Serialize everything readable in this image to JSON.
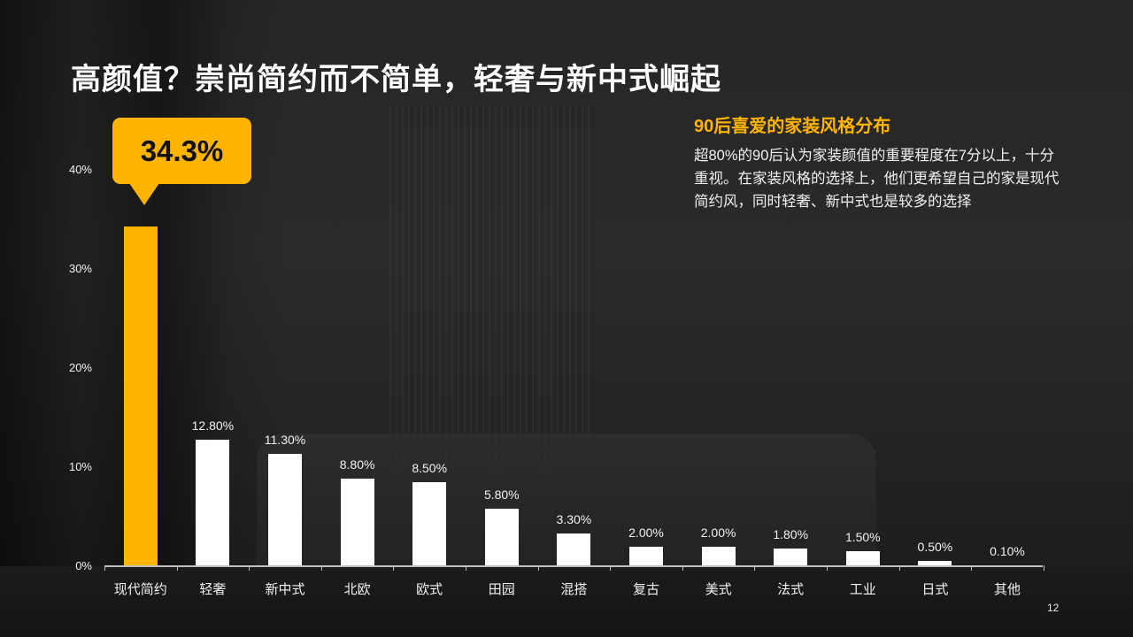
{
  "slide": {
    "title": "高颜值？崇尚简约而不简单，轻奢与新中式崛起",
    "subtitle": "90后喜爱的家装风格分布",
    "description": "超80%的90后认为家装颜值的重要程度在7分以上，十分重视。在家装风格的选择上，他们更希望自己的家是现代简约风，同时轻奢、新中式也是较多的选择",
    "callout": "34.3%",
    "page_number": "12",
    "colors": {
      "highlight": "#ffb400",
      "bar": "#ffffff",
      "text": "#ffffff"
    }
  },
  "axis": {
    "yticks": [
      "0%",
      "10%",
      "20%",
      "30%",
      "40%"
    ]
  },
  "labels": {
    "values": [
      "",
      "12.80%",
      "11.30%",
      "8.80%",
      "8.50%",
      "5.80%",
      "3.30%",
      "2.00%",
      "2.00%",
      "1.80%",
      "1.50%",
      "0.50%",
      "0.10%"
    ],
    "categories": [
      "现代简约",
      "轻奢",
      "新中式",
      "北欧",
      "欧式",
      "田园",
      "混搭",
      "复古",
      "美式",
      "法式",
      "工业",
      "日式",
      "其他"
    ]
  },
  "chart_data": {
    "type": "bar",
    "title": "90后喜爱的家装风格分布",
    "categories": [
      "现代简约",
      "轻奢",
      "新中式",
      "北欧",
      "欧式",
      "田园",
      "混搭",
      "复古",
      "美式",
      "法式",
      "工业",
      "日式",
      "其他"
    ],
    "values": [
      34.3,
      12.8,
      11.3,
      8.8,
      8.5,
      5.8,
      3.3,
      2.0,
      2.0,
      1.8,
      1.5,
      0.5,
      0.1
    ],
    "unit": "%",
    "xlabel": "",
    "ylabel": "",
    "ylim": [
      0,
      40
    ],
    "yticks": [
      "0%",
      "10%",
      "20%",
      "30%",
      "40%"
    ],
    "highlight": {
      "category": "现代简约",
      "label": "34.3%",
      "color": "#ffb400"
    },
    "grid": false,
    "legend": "none"
  }
}
